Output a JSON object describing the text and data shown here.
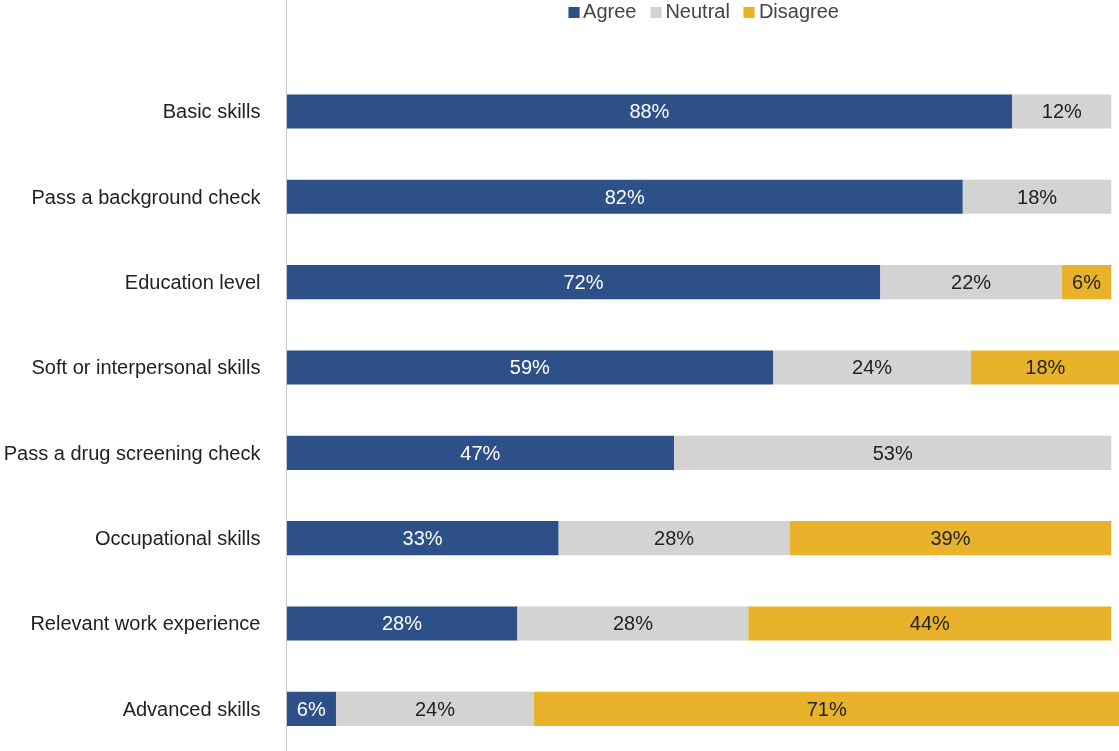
{
  "chart_data": {
    "type": "bar",
    "orientation": "horizontal",
    "stacked": true,
    "legend": "top",
    "grid": false,
    "categories": [
      "Basic skills",
      "Pass a background check",
      "Education level",
      "Soft or interpersonal skills",
      "Pass a drug screening check",
      "Occupational skills",
      "Relevant work experience",
      "Advanced skills"
    ],
    "series": [
      {
        "name": "Agree",
        "color": "#2e5089",
        "values": [
          88,
          82,
          72,
          59,
          47,
          33,
          28,
          6
        ],
        "value_labels": [
          "88%",
          "82%",
          "72%",
          "59%",
          "47%",
          "33%",
          "28%",
          "6%"
        ]
      },
      {
        "name": "Neutral",
        "color": "#d3d3d3",
        "values": [
          12,
          18,
          22,
          24,
          53,
          28,
          28,
          24
        ],
        "value_labels": [
          "12%",
          "18%",
          "22%",
          "24%",
          "53%",
          "28%",
          "28%",
          "24%"
        ]
      },
      {
        "name": "Disagree",
        "color": "#e8b32a",
        "values": [
          null,
          null,
          6,
          18,
          null,
          39,
          44,
          71
        ],
        "value_labels": [
          null,
          null,
          "6%",
          "18%",
          null,
          "39%",
          "44%",
          "71%"
        ]
      }
    ]
  }
}
